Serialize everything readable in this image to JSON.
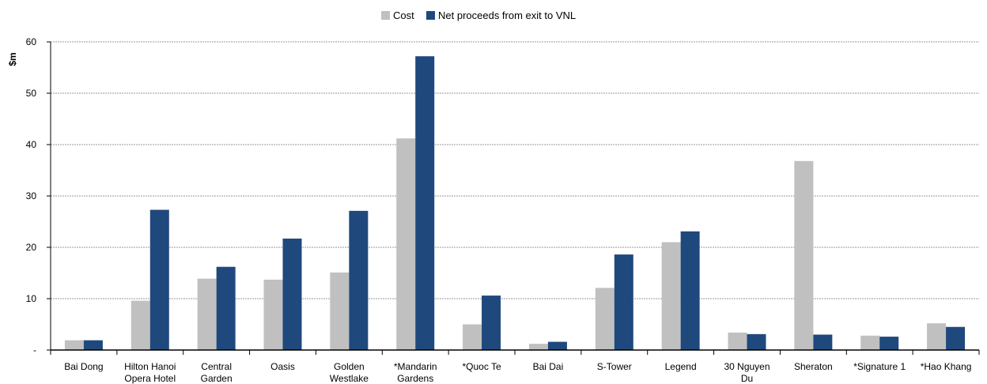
{
  "chart_data": {
    "type": "bar",
    "ylabel": "$m",
    "ylim": [
      0,
      60
    ],
    "yticks": [
      "-",
      "10",
      "20",
      "30",
      "40",
      "50",
      "60"
    ],
    "grid": true,
    "legend_position": "top-center",
    "categories": [
      [
        "Bai Dong"
      ],
      [
        "Hilton Hanoi",
        "Opera Hotel"
      ],
      [
        "Central",
        "Garden"
      ],
      [
        "Oasis"
      ],
      [
        "Golden",
        "Westlake"
      ],
      [
        "*Mandarin",
        "Gardens"
      ],
      [
        "*Quoc Te"
      ],
      [
        "Bai Dai"
      ],
      [
        "S-Tower"
      ],
      [
        "Legend"
      ],
      [
        "30 Nguyen",
        "Du"
      ],
      [
        "Sheraton"
      ],
      [
        "*Signature 1"
      ],
      [
        "*Hao Khang"
      ]
    ],
    "series": [
      {
        "name": "Cost",
        "color": "#c0c0c0",
        "values": [
          1.9,
          9.6,
          13.9,
          13.7,
          15.1,
          41.2,
          5.0,
          1.2,
          12.1,
          21.0,
          3.4,
          36.8,
          2.8,
          5.2
        ]
      },
      {
        "name": "Net proceeds from exit to VNL",
        "color": "#1f497d",
        "values": [
          1.9,
          27.3,
          16.2,
          21.7,
          27.1,
          57.2,
          10.6,
          1.6,
          18.6,
          23.1,
          3.1,
          3.0,
          2.6,
          4.5
        ]
      }
    ]
  }
}
